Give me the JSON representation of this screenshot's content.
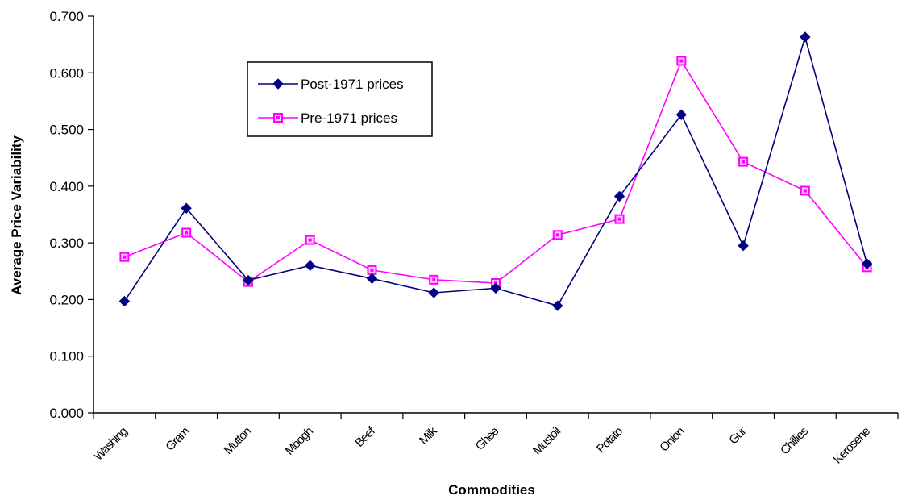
{
  "chart_data": {
    "type": "line",
    "title": "",
    "xlabel": "Commodities",
    "ylabel": "Average Price Variability",
    "ylim": [
      0,
      0.7
    ],
    "yticks": [
      "0.000",
      "0.100",
      "0.200",
      "0.300",
      "0.400",
      "0.500",
      "0.600",
      "0.700"
    ],
    "grid": false,
    "legend_placement": "upper-center",
    "categories": [
      "Washing",
      "Gram",
      "Mutton",
      "Moogh",
      "Beef",
      "Milk",
      "Ghee",
      "Mustoil",
      "Potato",
      "Onion",
      "Gur",
      "Chillies",
      "Kerosene"
    ],
    "series": [
      {
        "name": "Post-1971 prices",
        "color": "#000080",
        "marker": "diamond",
        "values": [
          0.197,
          0.361,
          0.234,
          0.26,
          0.237,
          0.212,
          0.22,
          0.189,
          0.382,
          0.526,
          0.295,
          0.663,
          0.263
        ]
      },
      {
        "name": "Pre-1971 prices",
        "color": "#ff00ff",
        "marker": "square",
        "values": [
          0.275,
          0.318,
          0.231,
          0.305,
          0.252,
          0.235,
          0.229,
          0.314,
          0.342,
          0.621,
          0.443,
          0.392,
          0.257
        ]
      }
    ]
  }
}
